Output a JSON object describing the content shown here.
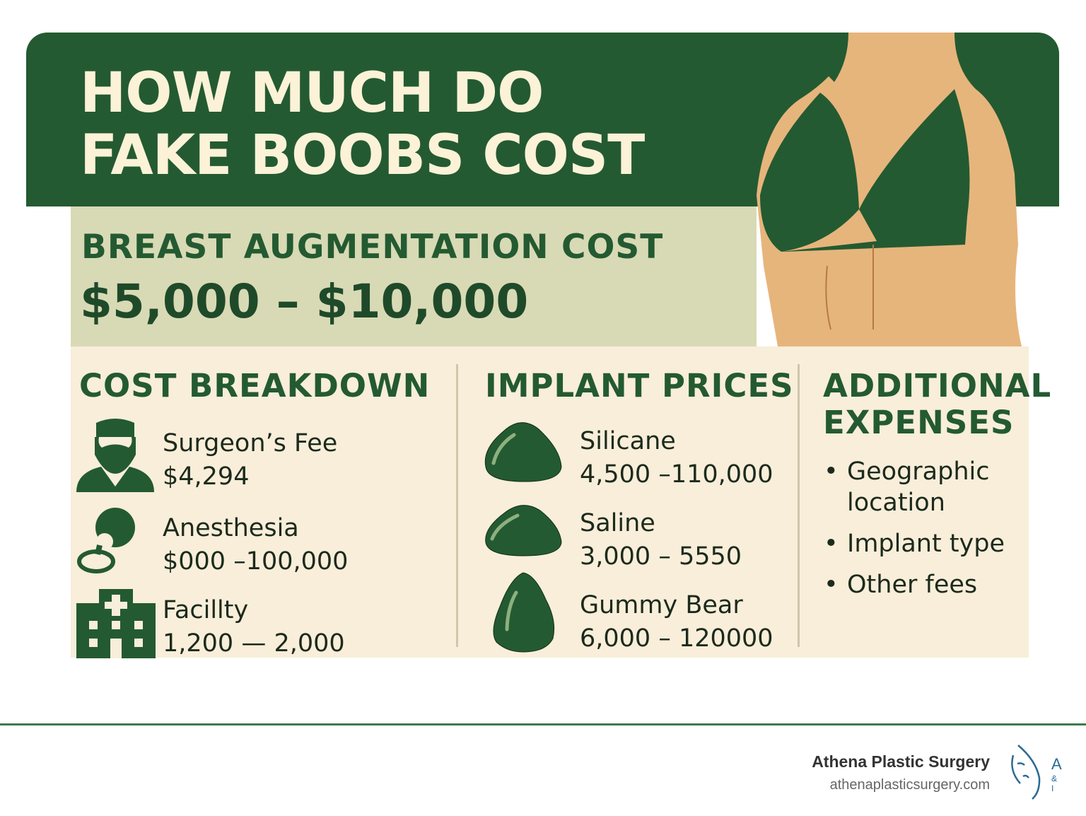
{
  "header": {
    "title_line1": "HOW MUCH DO",
    "title_line2": "FAKE BOOBS COST"
  },
  "summary": {
    "label": "BREAST AUGMENTATION COST",
    "range": "$5,000 – $10,000"
  },
  "cost_breakdown": {
    "heading": "COST BREAKDOWN",
    "items": [
      {
        "icon": "surgeon-icon",
        "label": "Surgeon’s Fee",
        "value": "$4,294"
      },
      {
        "icon": "anesthesia-mask-icon",
        "label": "Anesthesia",
        "value": "$000 –100,000"
      },
      {
        "icon": "hospital-icon",
        "label": "Facillty",
        "value": "1,200 — 2,000"
      }
    ]
  },
  "implant_prices": {
    "heading": "IMPLANT PRICES",
    "items": [
      {
        "icon": "implant-icon",
        "label": "Silicane",
        "value": "4,500 –110,000"
      },
      {
        "icon": "implant-icon",
        "label": "Saline",
        "value": "3,000 – 5550"
      },
      {
        "icon": "teardrop-implant-icon",
        "label": "Gummy Bear",
        "value": "6,000 – 120000"
      }
    ]
  },
  "additional": {
    "heading_line1": "ADDITIONAL",
    "heading_line2": "EXPENSES",
    "items": [
      "Geographic location",
      "Implant type",
      "Other fees"
    ]
  },
  "footer": {
    "brand": "Athena Plastic Surgery",
    "url": "athenaplasticsurgery.com",
    "logo_text": "A",
    "logo_sub": "& I"
  },
  "colors": {
    "primary": "#245a31",
    "cream": "#f8eeda",
    "band": "#d8dab5",
    "skin": "#e6b57c",
    "title_text": "#fbf2d8"
  }
}
